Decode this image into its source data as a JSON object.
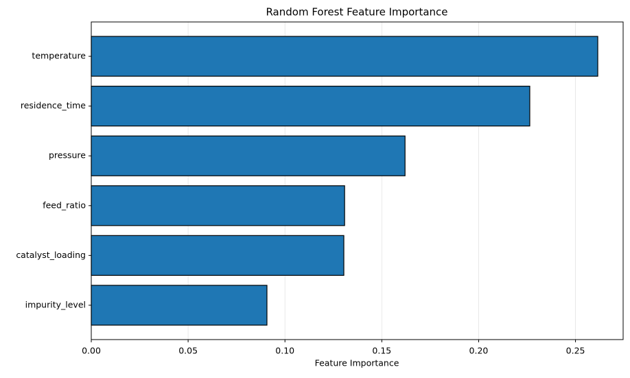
{
  "chart_data": {
    "type": "barh",
    "title": "Random Forest Feature Importance",
    "xlabel": "Feature Importance",
    "categories": [
      "temperature",
      "residence_time",
      "pressure",
      "feed_ratio",
      "catalyst_loading",
      "impurity_level"
    ],
    "values": [
      0.2615,
      0.2264,
      0.162,
      0.1308,
      0.1304,
      0.0907
    ],
    "color": "#1f77b4",
    "edgecolor": "#000000",
    "xlim": [
      0,
      0.2746
    ],
    "xticks": [
      {
        "value": 0,
        "label": "0.00"
      },
      {
        "value": 0.05,
        "label": "0.05"
      },
      {
        "value": 0.1,
        "label": "0.10"
      },
      {
        "value": 0.15,
        "label": "0.15"
      },
      {
        "value": 0.2,
        "label": "0.20"
      },
      {
        "value": 0.25,
        "label": "0.25"
      }
    ],
    "grid": true
  }
}
